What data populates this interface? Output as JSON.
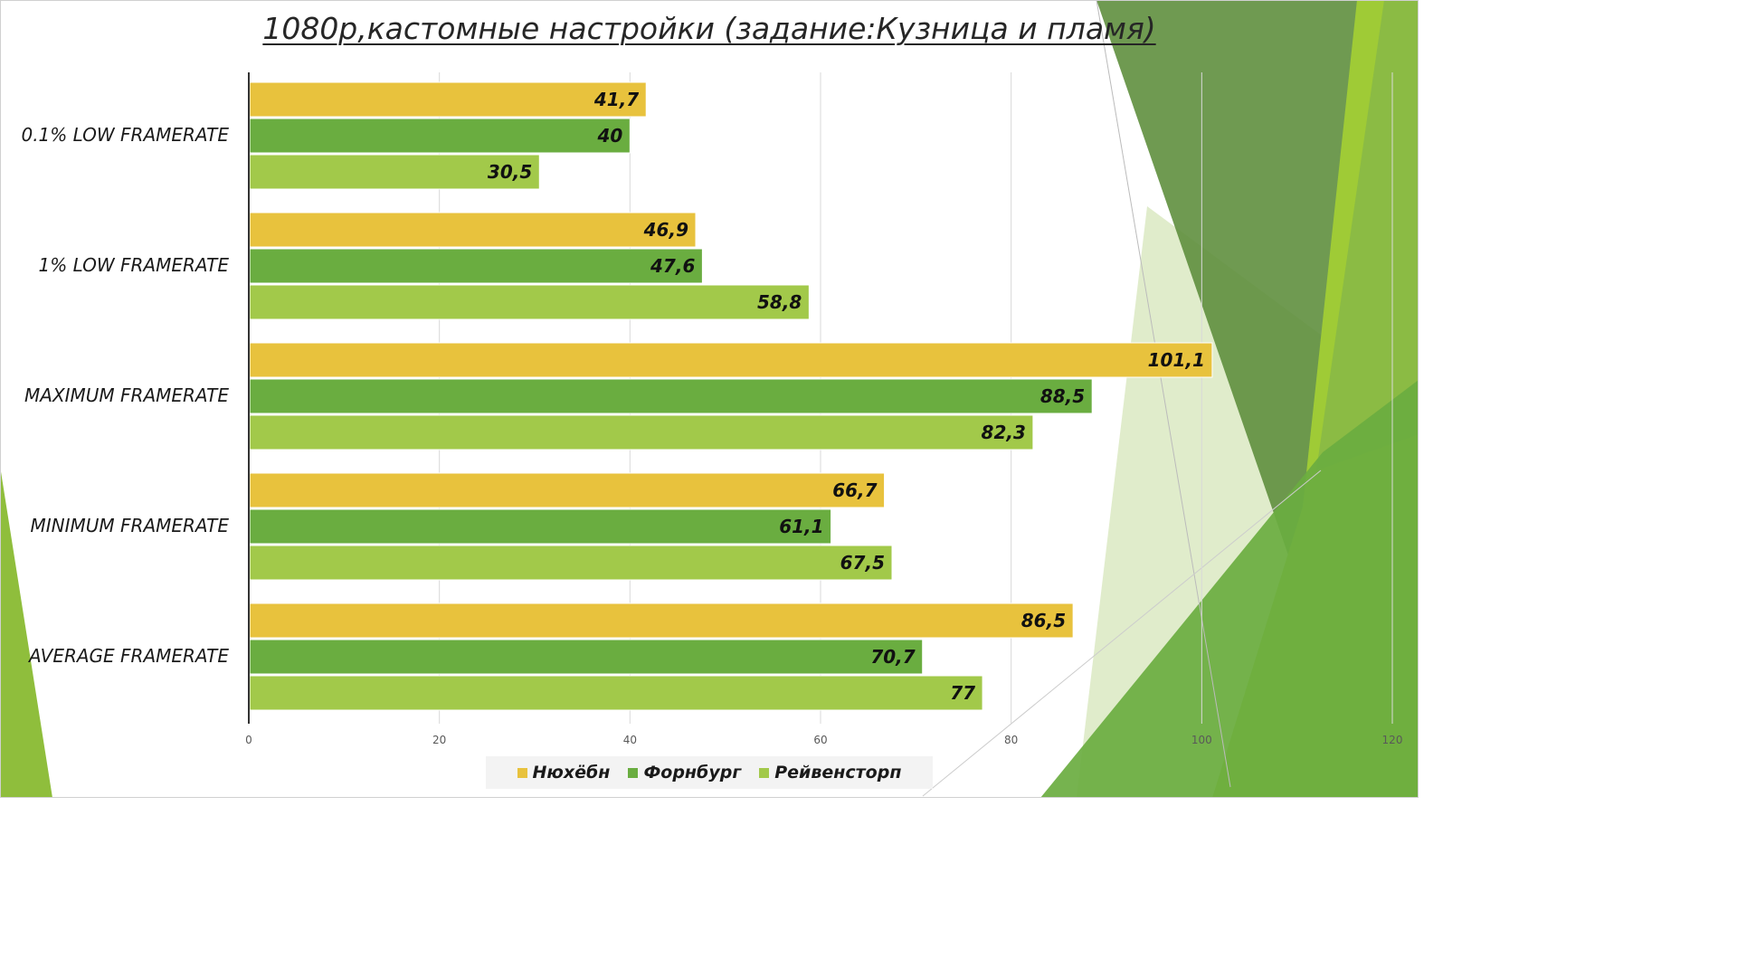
{
  "colors": {
    "series1": "#e8c23d",
    "series2": "#6aad40",
    "series3": "#a2c94a",
    "deco_dark": "#5f8f3e",
    "deco_mid": "#88b946",
    "deco_light": "#9fcb36",
    "deco_pale": "#dbe9c2"
  },
  "chart_data": {
    "type": "bar",
    "orientation": "horizontal",
    "title": "1080p,кастомные настройки (задание:Кузница и пламя)",
    "categories": [
      "0.1% LOW FRAMERATE",
      "1% LOW FRAMERATE",
      "MAXIMUM FRAMERATE",
      "MINIMUM FRAMERATE",
      "AVERAGE FRAMERATE"
    ],
    "series": [
      {
        "name": "Нюхёбн",
        "values": [
          41.7,
          46.9,
          101.1,
          66.7,
          86.5
        ],
        "labels": [
          "41,7",
          "46,9",
          "101,1",
          "66,7",
          "86,5"
        ]
      },
      {
        "name": "Форнбург",
        "values": [
          40,
          47.6,
          88.5,
          61.1,
          70.7
        ],
        "labels": [
          "40",
          "47,6",
          "88,5",
          "61,1",
          "70,7"
        ]
      },
      {
        "name": "Рейвенсторп",
        "values": [
          30.5,
          58.8,
          82.3,
          67.5,
          77
        ],
        "labels": [
          "30,5",
          "58,8",
          "82,3",
          "67,5",
          "77"
        ]
      }
    ],
    "xlim": [
      0,
      120
    ],
    "xticks": [
      0,
      20,
      40,
      60,
      80,
      100,
      120
    ],
    "grid": true,
    "legend": "bottom"
  }
}
